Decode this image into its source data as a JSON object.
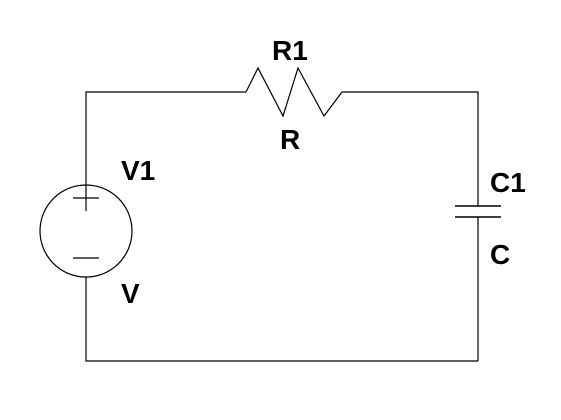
{
  "colors": {
    "background": "#ffffff",
    "wire": "#000000",
    "text": "#000000"
  },
  "components": {
    "resistor": {
      "name": "R1",
      "value": "R"
    },
    "source": {
      "name": "V1",
      "value": "V",
      "plus_symbol": "+",
      "minus_symbol": "−"
    },
    "capacitor": {
      "name": "C1",
      "value": "C"
    }
  }
}
